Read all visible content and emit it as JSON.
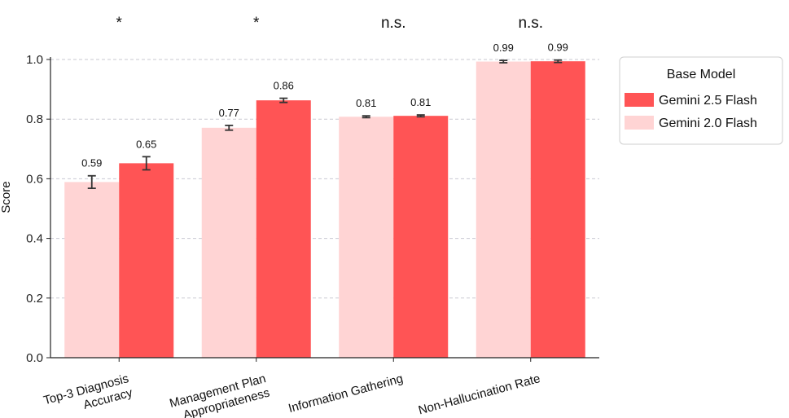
{
  "chart_data": {
    "type": "bar",
    "title": "",
    "xlabel": "",
    "ylabel": "Score",
    "ylim": [
      0,
      1.0
    ],
    "yticks": [
      "0.0",
      "0.2",
      "0.4",
      "0.6",
      "0.8",
      "1.0"
    ],
    "grid": "horizontal dashed",
    "categories": [
      [
        "Top-3 Diagnosis",
        "Accuracy"
      ],
      [
        "Management Plan",
        "Appropriateness"
      ],
      [
        "Information Gathering"
      ],
      [
        "Non-Hallucination Rate"
      ]
    ],
    "significance": [
      "*",
      "*",
      "n.s.",
      "n.s."
    ],
    "legend": {
      "title": "Base Model",
      "position": "right",
      "entries": [
        "Gemini 2.5 Flash",
        "Gemini 2.0 Flash"
      ]
    },
    "series": [
      {
        "name": "Gemini 2.0 Flash",
        "color": "#FFD4D4",
        "values": [
          0.589,
          0.771,
          0.808,
          0.993
        ],
        "labels": [
          "0.59",
          "0.77",
          "0.81",
          "0.99"
        ],
        "err": [
          0.021,
          0.008,
          0.003,
          0.004
        ]
      },
      {
        "name": "Gemini 2.5 Flash",
        "color": "#FF5455",
        "values": [
          0.652,
          0.863,
          0.811,
          0.994
        ],
        "labels": [
          "0.65",
          "0.86",
          "0.81",
          "0.99"
        ],
        "err": [
          0.022,
          0.007,
          0.003,
          0.004
        ]
      }
    ]
  }
}
